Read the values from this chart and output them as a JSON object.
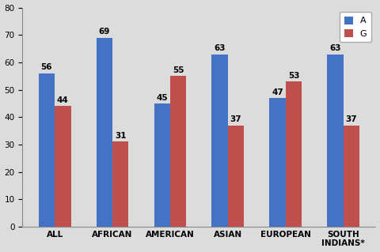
{
  "categories": [
    "ALL",
    "AFRICAN",
    "AMERICAN",
    "ASIAN",
    "EUROPEAN",
    "SOUTH\nINDIANS*"
  ],
  "A_values": [
    56,
    69,
    45,
    63,
    47,
    63
  ],
  "G_values": [
    44,
    31,
    55,
    37,
    53,
    37
  ],
  "A_color": "#4472C4",
  "G_color": "#C0504D",
  "ylim": [
    0,
    80
  ],
  "yticks": [
    0,
    10,
    20,
    30,
    40,
    50,
    60,
    70,
    80
  ],
  "legend_labels": [
    "A",
    "G"
  ],
  "bar_width": 0.28,
  "bar_gap": 0.0,
  "figure_width": 4.8,
  "figure_height": 3.19,
  "dpi": 100,
  "tick_fontsize": 7.5,
  "legend_fontsize": 8,
  "value_fontsize": 7.5,
  "bg_color": "#DCDCDC"
}
